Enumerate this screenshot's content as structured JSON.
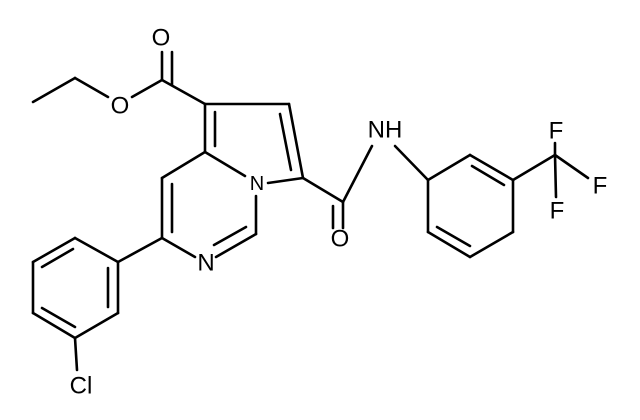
{
  "atoms": [
    {
      "label": "O"
    },
    {
      "label": "O"
    },
    {
      "label": "N"
    },
    {
      "label": "N"
    },
    {
      "label": "NH"
    },
    {
      "label": "O"
    },
    {
      "label": "F"
    },
    {
      "label": "F"
    },
    {
      "label": "F"
    },
    {
      "label": "Cl"
    }
  ]
}
